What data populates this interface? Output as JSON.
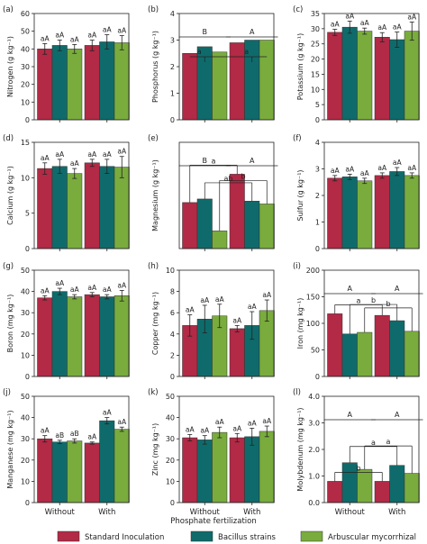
{
  "series": [
    {
      "name": "Standard Inoculation",
      "color": "#b22a45"
    },
    {
      "name": "Bacillus strains",
      "color": "#0f6b6b"
    },
    {
      "name": "Arbuscular mycorrhizal",
      "color": "#79ac3d"
    }
  ],
  "x_title": "Phosphate fertilization",
  "chart_data": [
    {
      "type": "bar",
      "panel": "(a)",
      "ylabel": "Nitrogen (g kg⁻¹)",
      "ylim": [
        0,
        60
      ],
      "yticks": [
        0,
        10,
        20,
        30,
        40,
        50,
        60
      ],
      "categories": [
        "Without",
        "With"
      ],
      "values": [
        [
          40,
          42,
          40
        ],
        [
          42,
          44,
          43.5
        ]
      ],
      "errors": [
        [
          3,
          3,
          2.5
        ],
        [
          3,
          4,
          4
        ]
      ],
      "labels": [
        [
          "aA",
          "aA",
          "aA"
        ],
        [
          "aA",
          "aA",
          "aA"
        ]
      ]
    },
    {
      "type": "bar",
      "panel": "(b)",
      "ylabel": "Phosphorus (g kg⁻¹)",
      "ylim": [
        0,
        4
      ],
      "yticks": [
        0,
        1,
        2,
        3,
        4
      ],
      "categories": [
        "Without",
        "With"
      ],
      "values": [
        [
          2.5,
          2.75,
          2.55
        ],
        [
          2.9,
          3.0,
          3.0
        ]
      ],
      "errors": [
        [
          0,
          0,
          0
        ],
        [
          0,
          0,
          0
        ]
      ],
      "labels": [
        [
          "",
          "",
          ""
        ],
        [
          "",
          "",
          ""
        ]
      ],
      "group_letters": [
        "B",
        "A"
      ],
      "comparison_letters": [
        "a",
        "a"
      ]
    },
    {
      "type": "bar",
      "panel": "(c)",
      "ylabel": "Potassium (g kg⁻¹)",
      "ylim": [
        0,
        35
      ],
      "yticks": [
        0,
        5,
        10,
        15,
        20,
        25,
        30,
        35
      ],
      "categories": [
        "Without",
        "With"
      ],
      "values": [
        [
          28.8,
          30.5,
          29.2
        ],
        [
          27.2,
          26.4,
          29.2
        ]
      ],
      "errors": [
        [
          1,
          2,
          1
        ],
        [
          1.5,
          2.5,
          3
        ]
      ],
      "labels": [
        [
          "aA",
          "aA",
          "aA"
        ],
        [
          "aA",
          "aA",
          "aA"
        ]
      ]
    },
    {
      "type": "bar",
      "panel": "(d)",
      "ylabel": "Calcium (g kg⁻¹)",
      "ylim": [
        0,
        15
      ],
      "yticks": [
        0,
        5,
        10,
        15
      ],
      "categories": [
        "Without",
        "With"
      ],
      "values": [
        [
          11.3,
          11.6,
          10.6
        ],
        [
          12.1,
          11.6,
          11.5
        ]
      ],
      "errors": [
        [
          0.8,
          1,
          0.7
        ],
        [
          0.5,
          1,
          1.5
        ]
      ],
      "labels": [
        [
          "aA",
          "aA",
          "aA"
        ],
        [
          "aA",
          "aA",
          "aA"
        ]
      ]
    },
    {
      "type": "bar",
      "panel": "(e)",
      "ylabel": "Magnesium (g kg⁻¹)",
      "ylim": [
        3.5,
        5.0
      ],
      "yticks": [],
      "categories": [
        "Without",
        "With"
      ],
      "values": [
        [
          4.15,
          4.2,
          3.75
        ],
        [
          4.55,
          4.17,
          4.13
        ]
      ],
      "errors": [
        [
          0,
          0,
          0
        ],
        [
          0,
          0,
          0
        ]
      ],
      "labels": [
        [
          "",
          "",
          ""
        ],
        [
          "",
          "",
          ""
        ]
      ],
      "group_letters": [
        "B",
        "A"
      ],
      "comparison_letters": [
        "a",
        "ab",
        "b"
      ]
    },
    {
      "type": "bar",
      "panel": "(f)",
      "ylabel": "Sulfur (g kg⁻¹)",
      "ylim": [
        0,
        4
      ],
      "yticks": [
        0,
        1,
        2,
        3,
        4
      ],
      "categories": [
        "Without",
        "With"
      ],
      "values": [
        [
          2.65,
          2.7,
          2.55
        ],
        [
          2.75,
          2.9,
          2.75
        ]
      ],
      "errors": [
        [
          0.1,
          0.1,
          0.1
        ],
        [
          0.1,
          0.15,
          0.1
        ]
      ],
      "labels": [
        [
          "aA",
          "aA",
          "aA"
        ],
        [
          "aA",
          "aA",
          "aA"
        ]
      ]
    },
    {
      "type": "bar",
      "panel": "(g)",
      "ylabel": "Boron (mg kg⁻¹)",
      "ylim": [
        0,
        50
      ],
      "yticks": [
        0,
        10,
        20,
        30,
        40,
        50
      ],
      "categories": [
        "Without",
        "With"
      ],
      "values": [
        [
          37,
          40,
          37.5
        ],
        [
          38.5,
          37.5,
          38
        ]
      ],
      "errors": [
        [
          1,
          1.5,
          1
        ],
        [
          1,
          1,
          2.5
        ]
      ],
      "labels": [
        [
          "aA",
          "aA",
          "aA"
        ],
        [
          "aA",
          "aA",
          "aA"
        ]
      ]
    },
    {
      "type": "bar",
      "panel": "(h)",
      "ylabel": "Copper (mg kg⁻¹)",
      "ylim": [
        0,
        10
      ],
      "yticks": [
        0,
        2,
        4,
        6,
        8,
        10
      ],
      "categories": [
        "Without",
        "With"
      ],
      "values": [
        [
          4.8,
          5.4,
          5.7
        ],
        [
          4.5,
          4.8,
          6.2
        ]
      ],
      "errors": [
        [
          1,
          1.3,
          1.1
        ],
        [
          0.3,
          1.3,
          1
        ]
      ],
      "labels": [
        [
          "aA",
          "aA",
          "aA"
        ],
        [
          "aA",
          "aA",
          "aA"
        ]
      ]
    },
    {
      "type": "bar",
      "panel": "(i)",
      "ylabel": "Iron (mg kg⁻¹)",
      "ylim": [
        0,
        200
      ],
      "yticks": [
        0,
        50,
        100,
        150,
        200
      ],
      "categories": [
        "Without",
        "With"
      ],
      "values": [
        [
          118,
          80,
          83
        ],
        [
          115,
          105,
          85
        ]
      ],
      "errors": [
        [
          0,
          0,
          0
        ],
        [
          0,
          0,
          0
        ]
      ],
      "labels": [
        [
          "",
          "",
          ""
        ],
        [
          "",
          "",
          ""
        ]
      ],
      "group_letters": [
        "A",
        "A"
      ],
      "comparison_letters": [
        "a",
        "b",
        "b"
      ]
    },
    {
      "type": "bar",
      "panel": "(j)",
      "ylabel": "Manganese (mg kg⁻¹)",
      "ylim": [
        0,
        50
      ],
      "yticks": [
        0,
        10,
        20,
        30,
        40,
        50
      ],
      "categories": [
        "Without",
        "With"
      ],
      "values": [
        [
          30,
          28.5,
          29
        ],
        [
          28,
          38.5,
          34.5
        ]
      ],
      "errors": [
        [
          1.5,
          0.8,
          1
        ],
        [
          0.5,
          1.5,
          1
        ]
      ],
      "labels": [
        [
          "aA",
          "aB",
          "aB"
        ],
        [
          "aA",
          "aA",
          "aA"
        ]
      ]
    },
    {
      "type": "bar",
      "panel": "(k)",
      "ylabel": "Zinc (mg kg⁻¹)",
      "ylim": [
        0,
        50
      ],
      "yticks": [
        0,
        10,
        20,
        30,
        40,
        50
      ],
      "categories": [
        "Without",
        "With"
      ],
      "values": [
        [
          30.5,
          29.5,
          33
        ],
        [
          30.5,
          31,
          33.5
        ]
      ],
      "errors": [
        [
          1.5,
          2,
          2.5
        ],
        [
          2,
          4,
          2.5
        ]
      ],
      "labels": [
        [
          "aA",
          "aA",
          "aA"
        ],
        [
          "aA",
          "aA",
          "aA"
        ]
      ]
    },
    {
      "type": "bar",
      "panel": "(l)",
      "ylabel": "Molybdenum (mg kg⁻¹)",
      "ylim": [
        0,
        4
      ],
      "yticks": [
        0.0,
        1.0,
        2.0,
        3.0,
        4.0
      ],
      "categories": [
        "Without",
        "With"
      ],
      "values": [
        [
          0.8,
          1.5,
          1.25
        ],
        [
          0.8,
          1.4,
          1.1
        ]
      ],
      "errors": [
        [
          0,
          0,
          0
        ],
        [
          0,
          0,
          0
        ]
      ],
      "labels": [
        [
          "",
          "",
          ""
        ],
        [
          "",
          "",
          ""
        ]
      ],
      "group_letters": [
        "A",
        "A"
      ],
      "comparison_letters": [
        "b",
        "a",
        "a"
      ]
    }
  ]
}
